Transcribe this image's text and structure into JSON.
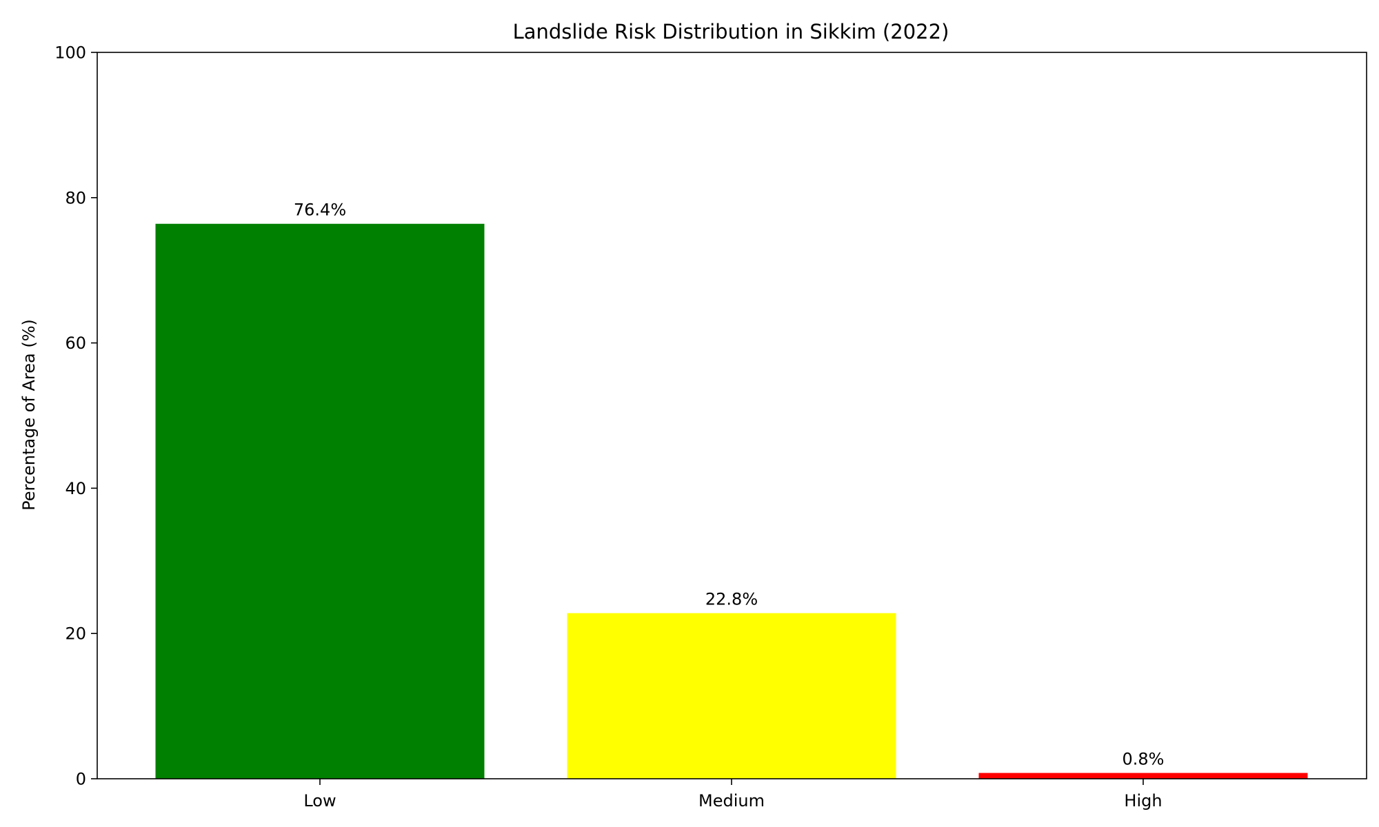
{
  "chart_data": {
    "type": "bar",
    "title": "Landslide Risk Distribution in Sikkim (2022)",
    "xlabel": "",
    "ylabel": "Percentage of Area (%)",
    "categories": [
      "Low",
      "Medium",
      "High"
    ],
    "values": [
      76.4,
      22.8,
      0.8
    ],
    "value_labels": [
      "76.4%",
      "22.8%",
      "0.8%"
    ],
    "colors": [
      "#008000",
      "#ffff00",
      "#ff0000"
    ],
    "ylim": [
      0,
      100
    ],
    "yticks": [
      0,
      20,
      40,
      60,
      80,
      100
    ],
    "ytick_labels": [
      "0",
      "20",
      "40",
      "60",
      "80",
      "100"
    ],
    "grid": false,
    "legend": false
  }
}
